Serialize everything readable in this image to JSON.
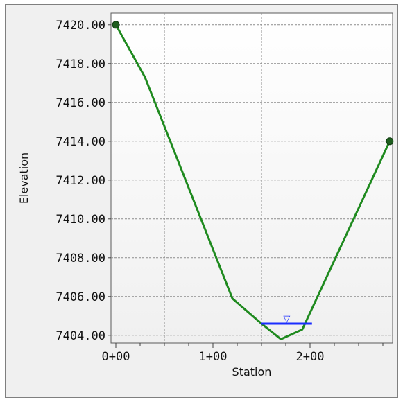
{
  "chart_data": {
    "type": "line",
    "xlabel": "Station",
    "ylabel": "Elevation",
    "xlim": [
      -5,
      285
    ],
    "ylim": [
      7403.6,
      7420.6
    ],
    "x_ticks": [
      {
        "value": 0,
        "label": "0+00"
      },
      {
        "value": 100,
        "label": "1+00"
      },
      {
        "value": 200,
        "label": "2+00"
      }
    ],
    "x_minor_ticks": [
      25,
      50,
      75,
      125,
      150,
      175,
      225,
      250,
      275
    ],
    "x_grid": [
      50,
      150
    ],
    "y_ticks": [
      {
        "value": 7404,
        "label": "7404.00"
      },
      {
        "value": 7406,
        "label": "7406.00"
      },
      {
        "value": 7408,
        "label": "7408.00"
      },
      {
        "value": 7410,
        "label": "7410.00"
      },
      {
        "value": 7412,
        "label": "7412.00"
      },
      {
        "value": 7414,
        "label": "7414.00"
      },
      {
        "value": 7416,
        "label": "7416.00"
      },
      {
        "value": 7418,
        "label": "7418.00"
      },
      {
        "value": 7420,
        "label": "7420.00"
      }
    ],
    "grid": true,
    "series": [
      {
        "color": "#1f8a1f",
        "x": [
          0,
          30,
          120,
          150,
          170,
          192,
          282
        ],
        "y": [
          7420.0,
          7417.3,
          7405.9,
          7404.6,
          7403.8,
          7404.3,
          7414.0
        ],
        "end_markers": true
      }
    ],
    "water_surface": {
      "color": "#1a2dff",
      "x": [
        150,
        202
      ],
      "elevation": 7404.6,
      "symbol": "▽"
    }
  }
}
